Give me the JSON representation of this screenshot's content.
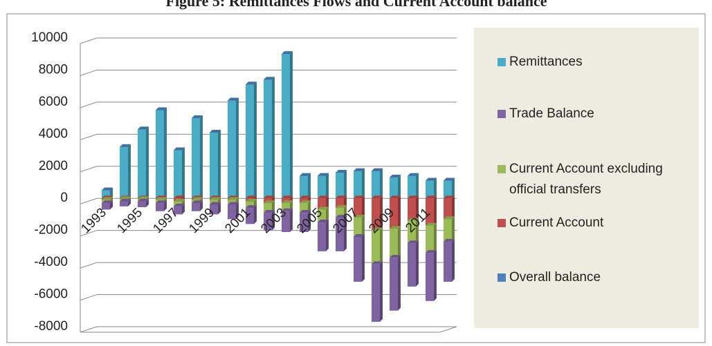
{
  "chart_data": {
    "type": "bar",
    "stacked": true,
    "title": "Figure 5: Remittances Flows and Current Account balance",
    "categories": [
      "1993",
      null,
      "1995",
      null,
      "1997",
      null,
      "1999",
      null,
      "2001",
      null,
      "2003",
      null,
      "2005",
      null,
      "2007",
      null,
      "2009",
      null,
      "2011",
      null
    ],
    "series": [
      {
        "name": "Remittances",
        "color": "#4bacc6",
        "values": [
          500,
          3200,
          4300,
          5500,
          3000,
          5000,
          4100,
          6100,
          7100,
          7400,
          9000,
          1400,
          1400,
          1600,
          1700,
          1700,
          1300,
          1400,
          1100,
          1100
        ]
      },
      {
        "name": "Trade Balance",
        "color": "#8064a2",
        "values": [
          -400,
          -300,
          -350,
          -500,
          -500,
          -500,
          -600,
          -900,
          -1000,
          -1100,
          -1300,
          -1200,
          -1800,
          -2100,
          -2800,
          -3600,
          -3300,
          -2700,
          -3000,
          -2500
        ]
      },
      {
        "name": "Current Account excluding official transfers",
        "color": "#9bbb59",
        "values": [
          -200,
          -150,
          -150,
          -200,
          -300,
          -200,
          -300,
          -300,
          -400,
          -600,
          -500,
          -600,
          -800,
          -600,
          -1200,
          -2100,
          -1800,
          -1400,
          -1700,
          -1400
        ]
      },
      {
        "name": "Current Account",
        "color": "#c0504d",
        "values": [
          -100,
          -50,
          -50,
          -100,
          -200,
          -100,
          -100,
          -100,
          -200,
          -300,
          -300,
          -300,
          -700,
          -600,
          -1200,
          -2000,
          -1900,
          -1400,
          -1700,
          -1300
        ]
      },
      {
        "name": "Overall balance",
        "color": "#4f81bd",
        "values": [
          0,
          0,
          0,
          0,
          0,
          0,
          0,
          0,
          0,
          0,
          0,
          0,
          0,
          0,
          0,
          0,
          0,
          0,
          0,
          0
        ]
      }
    ],
    "ylim": [
      -8000,
      10000
    ],
    "yticks": [
      -8000,
      -6000,
      -4000,
      -2000,
      0,
      2000,
      4000,
      6000,
      8000,
      10000
    ],
    "grid": true,
    "legend": "right"
  }
}
